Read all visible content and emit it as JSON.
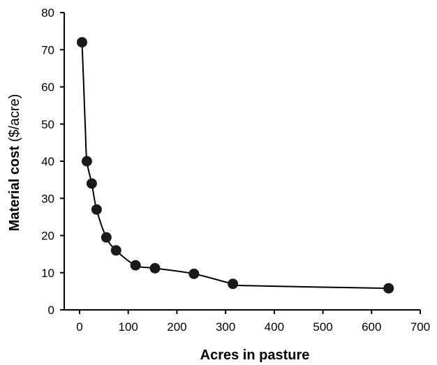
{
  "chart_data": {
    "type": "scatter",
    "title": "",
    "xlabel": "Acres in pasture",
    "ylabel": {
      "bold": "Material cost",
      "normal": " ($/acre)"
    },
    "xlim": [
      0,
      700
    ],
    "ylim": [
      0,
      80
    ],
    "x_ticks": [
      0,
      100,
      200,
      300,
      400,
      500,
      600,
      700
    ],
    "y_ticks": [
      0,
      10,
      20,
      30,
      40,
      50,
      60,
      70,
      80
    ],
    "grid": false,
    "legend": "none",
    "series": [
      {
        "x": [
          5,
          15,
          25,
          35,
          55,
          75,
          115,
          155,
          235,
          315,
          635
        ],
        "y": [
          72,
          40,
          34,
          27,
          19.5,
          16,
          12,
          11.2,
          9.7,
          7,
          5.8
        ]
      }
    ],
    "trend_curve": {
      "x": [
        5,
        8,
        12,
        15,
        25,
        35,
        55,
        75,
        115,
        155,
        235,
        315,
        350,
        635
      ],
      "y": [
        72,
        62,
        48,
        40,
        34,
        27,
        19.5,
        16,
        12,
        11.2,
        9.7,
        7,
        6.5,
        5.8
      ]
    },
    "colors": {
      "axis": "#000000",
      "marker": "#1a1a1a",
      "line": "#000000"
    }
  }
}
